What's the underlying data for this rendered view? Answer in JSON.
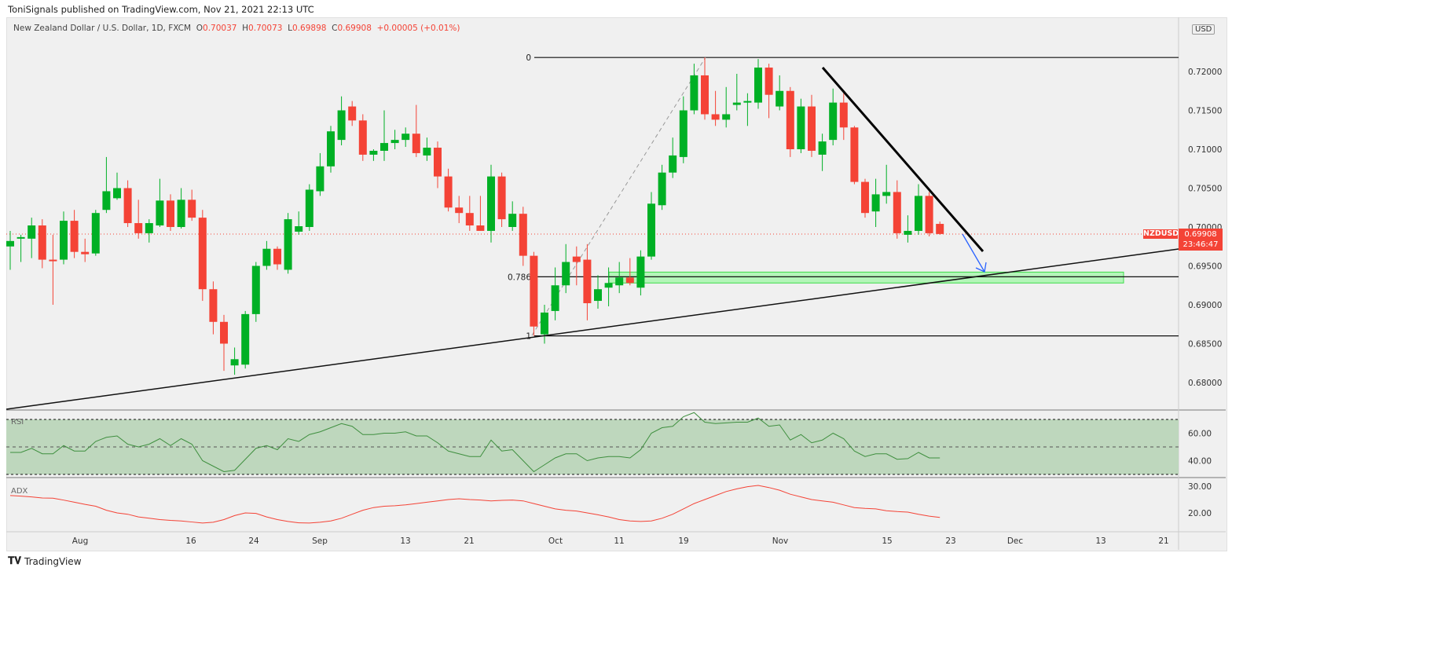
{
  "attribution": "ToniSignals published on TradingView.com, Nov 21, 2021 22:13 UTC",
  "legend": {
    "title": "New Zealand Dollar / U.S. Dollar, 1D, FXCM",
    "o_label": "O",
    "o": "0.70037",
    "h_label": "H",
    "h": "0.70073",
    "l_label": "L",
    "l": "0.69898",
    "c_label": "C",
    "c": "0.69908",
    "change": "+0.00005 (+0.01%)"
  },
  "currency": "USD",
  "symbol_tag": "NZDUSD",
  "last_price": "0.69908",
  "countdown": "23:46:47",
  "fib_labels": {
    "zero": "0",
    "level": "0.786",
    "one": "1"
  },
  "rsi_label": "RSI",
  "adx_label": "ADX",
  "footer_logo": "TradingView",
  "colors": {
    "up": "#00b025",
    "down": "#f44336",
    "rsi": "#3f8f3f",
    "adx": "#f44336",
    "zone": "#b4f5b9"
  },
  "chart_data": {
    "type": "candlestick",
    "price_axis": [
      "0.72000",
      "0.71500",
      "0.71000",
      "0.70500",
      "0.70000",
      "0.69500",
      "0.69000",
      "0.68500",
      "0.68000"
    ],
    "rsi_axis": [
      "60.00",
      "40.00"
    ],
    "adx_axis": [
      "30.00",
      "20.00"
    ],
    "time_axis": [
      "Aug",
      "16",
      "24",
      "Sep",
      "13",
      "21",
      "Oct",
      "11",
      "19",
      "Nov",
      "15",
      "23",
      "Dec",
      "13",
      "21"
    ],
    "ohlc": [
      [
        0.6975,
        0.6995,
        0.6945,
        0.6982
      ],
      [
        0.6985,
        0.699,
        0.6955,
        0.6987
      ],
      [
        0.6985,
        0.7012,
        0.696,
        0.7002
      ],
      [
        0.7002,
        0.701,
        0.6947,
        0.6958
      ],
      [
        0.6958,
        0.699,
        0.69,
        0.6957
      ],
      [
        0.6958,
        0.702,
        0.6952,
        0.7008
      ],
      [
        0.7008,
        0.7022,
        0.696,
        0.6968
      ],
      [
        0.6968,
        0.6985,
        0.6955,
        0.6965
      ],
      [
        0.6966,
        0.7022,
        0.6963,
        0.7018
      ],
      [
        0.7022,
        0.709,
        0.7018,
        0.7046
      ],
      [
        0.7037,
        0.707,
        0.7035,
        0.705
      ],
      [
        0.705,
        0.706,
        0.7,
        0.7005
      ],
      [
        0.7005,
        0.7035,
        0.6985,
        0.6992
      ],
      [
        0.6992,
        0.701,
        0.698,
        0.7005
      ],
      [
        0.7002,
        0.7062,
        0.7,
        0.7034
      ],
      [
        0.7034,
        0.7042,
        0.6995,
        0.7
      ],
      [
        0.7,
        0.705,
        0.6998,
        0.7035
      ],
      [
        0.7035,
        0.7048,
        0.7008,
        0.7012
      ],
      [
        0.7012,
        0.7022,
        0.6905,
        0.692
      ],
      [
        0.692,
        0.693,
        0.6862,
        0.6878
      ],
      [
        0.6878,
        0.6887,
        0.6815,
        0.685
      ],
      [
        0.6822,
        0.6845,
        0.681,
        0.683
      ],
      [
        0.6823,
        0.6892,
        0.6818,
        0.6888
      ],
      [
        0.6888,
        0.6955,
        0.6878,
        0.695
      ],
      [
        0.695,
        0.6982,
        0.6945,
        0.6972
      ],
      [
        0.6972,
        0.6975,
        0.6945,
        0.6952
      ],
      [
        0.6945,
        0.7018,
        0.694,
        0.701
      ],
      [
        0.6994,
        0.702,
        0.699,
        0.7001
      ],
      [
        0.7,
        0.7055,
        0.6995,
        0.7048
      ],
      [
        0.7046,
        0.7095,
        0.704,
        0.7078
      ],
      [
        0.7078,
        0.713,
        0.707,
        0.7123
      ],
      [
        0.7112,
        0.7168,
        0.7105,
        0.715
      ],
      [
        0.7155,
        0.7162,
        0.713,
        0.7137
      ],
      [
        0.7137,
        0.7145,
        0.7085,
        0.7093
      ],
      [
        0.7093,
        0.71,
        0.7085,
        0.7098
      ],
      [
        0.7098,
        0.715,
        0.7085,
        0.7108
      ],
      [
        0.7108,
        0.7125,
        0.71,
        0.7112
      ],
      [
        0.7112,
        0.7128,
        0.7103,
        0.712
      ],
      [
        0.712,
        0.7157,
        0.709,
        0.7095
      ],
      [
        0.7092,
        0.7115,
        0.7085,
        0.7102
      ],
      [
        0.7102,
        0.711,
        0.705,
        0.7065
      ],
      [
        0.7065,
        0.7075,
        0.702,
        0.7025
      ],
      [
        0.7025,
        0.704,
        0.7005,
        0.7018
      ],
      [
        0.7018,
        0.704,
        0.6995,
        0.7002
      ],
      [
        0.7002,
        0.704,
        0.6995,
        0.6995
      ],
      [
        0.6995,
        0.708,
        0.698,
        0.7065
      ],
      [
        0.7065,
        0.707,
        0.7,
        0.701
      ],
      [
        0.7,
        0.7033,
        0.6995,
        0.7017
      ],
      [
        0.7017,
        0.7026,
        0.695,
        0.6963
      ],
      [
        0.6963,
        0.6968,
        0.686,
        0.6872
      ],
      [
        0.6862,
        0.69,
        0.685,
        0.689
      ],
      [
        0.6892,
        0.6948,
        0.688,
        0.6925
      ],
      [
        0.6925,
        0.6978,
        0.6915,
        0.6955
      ],
      [
        0.6962,
        0.6975,
        0.6925,
        0.6955
      ],
      [
        0.6958,
        0.6978,
        0.688,
        0.6902
      ],
      [
        0.6905,
        0.6938,
        0.6895,
        0.692
      ],
      [
        0.6922,
        0.6948,
        0.6898,
        0.6928
      ],
      [
        0.6925,
        0.6955,
        0.6915,
        0.6935
      ],
      [
        0.6935,
        0.696,
        0.6925,
        0.6928
      ],
      [
        0.6922,
        0.697,
        0.6912,
        0.6962
      ],
      [
        0.6962,
        0.7045,
        0.6958,
        0.703
      ],
      [
        0.7028,
        0.708,
        0.7022,
        0.707
      ],
      [
        0.707,
        0.7115,
        0.7063,
        0.7092
      ],
      [
        0.709,
        0.7168,
        0.7082,
        0.715
      ],
      [
        0.715,
        0.721,
        0.7145,
        0.7195
      ],
      [
        0.7195,
        0.7218,
        0.7138,
        0.7145
      ],
      [
        0.7145,
        0.7175,
        0.713,
        0.7138
      ],
      [
        0.7138,
        0.718,
        0.7128,
        0.7145
      ],
      [
        0.7157,
        0.7197,
        0.715,
        0.716
      ],
      [
        0.716,
        0.7172,
        0.713,
        0.7162
      ],
      [
        0.716,
        0.7216,
        0.7152,
        0.7205
      ],
      [
        0.7205,
        0.721,
        0.714,
        0.717
      ],
      [
        0.7155,
        0.7195,
        0.715,
        0.7175
      ],
      [
        0.7175,
        0.718,
        0.709,
        0.71
      ],
      [
        0.71,
        0.7165,
        0.7095,
        0.7155
      ],
      [
        0.7155,
        0.717,
        0.709,
        0.7098
      ],
      [
        0.7093,
        0.712,
        0.7072,
        0.711
      ],
      [
        0.7112,
        0.7178,
        0.7105,
        0.716
      ],
      [
        0.716,
        0.7172,
        0.7112,
        0.7128
      ],
      [
        0.7128,
        0.713,
        0.7055,
        0.7058
      ],
      [
        0.7058,
        0.7062,
        0.7012,
        0.7018
      ],
      [
        0.702,
        0.7062,
        0.7,
        0.7042
      ],
      [
        0.704,
        0.708,
        0.703,
        0.7045
      ],
      [
        0.7045,
        0.706,
        0.6985,
        0.6992
      ],
      [
        0.699,
        0.7015,
        0.698,
        0.6995
      ],
      [
        0.6995,
        0.7055,
        0.699,
        0.704
      ],
      [
        0.704,
        0.7045,
        0.6988,
        0.6992
      ],
      [
        0.7004,
        0.7007,
        0.699,
        0.6991
      ]
    ],
    "rsi": [
      46,
      46,
      49,
      45,
      45,
      51,
      47,
      47,
      54,
      57,
      58,
      52,
      50,
      52,
      56,
      51,
      56,
      52,
      40,
      36,
      32,
      33,
      41,
      49,
      51,
      48,
      56,
      54,
      59,
      61,
      64,
      67,
      65,
      59,
      59,
      60,
      60,
      61,
      58,
      58,
      53,
      47,
      45,
      43,
      43,
      55,
      47,
      48,
      40,
      32,
      37,
      42,
      45,
      45,
      40,
      42,
      43,
      43,
      42,
      48,
      60,
      64,
      65,
      72,
      75,
      68,
      67,
      67.5,
      68,
      68,
      71,
      65,
      66,
      55,
      59,
      53,
      55,
      60,
      56,
      47,
      43,
      45,
      45,
      41,
      41.5,
      46,
      42,
      42
    ],
    "adx": [
      26.5,
      26.3,
      26,
      25.6,
      25.5,
      24.8,
      24,
      23.2,
      22.5,
      21,
      20,
      19.5,
      18.5,
      18,
      17.5,
      17.2,
      17,
      16.6,
      16.2,
      16.5,
      17.5,
      19,
      20,
      19.8,
      18.5,
      17.5,
      16.8,
      16.3,
      16.2,
      16.5,
      17,
      18,
      19.5,
      21,
      22,
      22.5,
      22.7,
      23,
      23.5,
      24,
      24.5,
      25,
      25.3,
      25,
      24.8,
      24.5,
      24.7,
      24.8,
      24.5,
      23.5,
      22.5,
      21.5,
      21,
      20.7,
      20,
      19.3,
      18.5,
      17.5,
      17,
      16.8,
      17,
      18,
      19.5,
      21.5,
      23.5,
      25,
      26.5,
      28,
      29,
      29.8,
      30.3,
      29.5,
      28.5,
      27,
      26,
      25,
      24.5,
      24,
      23,
      22,
      21.7,
      21.5,
      20.8,
      20.5,
      20.3,
      19.5,
      18.8,
      18.3
    ],
    "rsi_bands": [
      70,
      50,
      30
    ],
    "fib": {
      "zero": 0.7218,
      "level786": 0.6936,
      "one": 0.686
    },
    "zone": [
      0.6928,
      0.6942
    ]
  }
}
